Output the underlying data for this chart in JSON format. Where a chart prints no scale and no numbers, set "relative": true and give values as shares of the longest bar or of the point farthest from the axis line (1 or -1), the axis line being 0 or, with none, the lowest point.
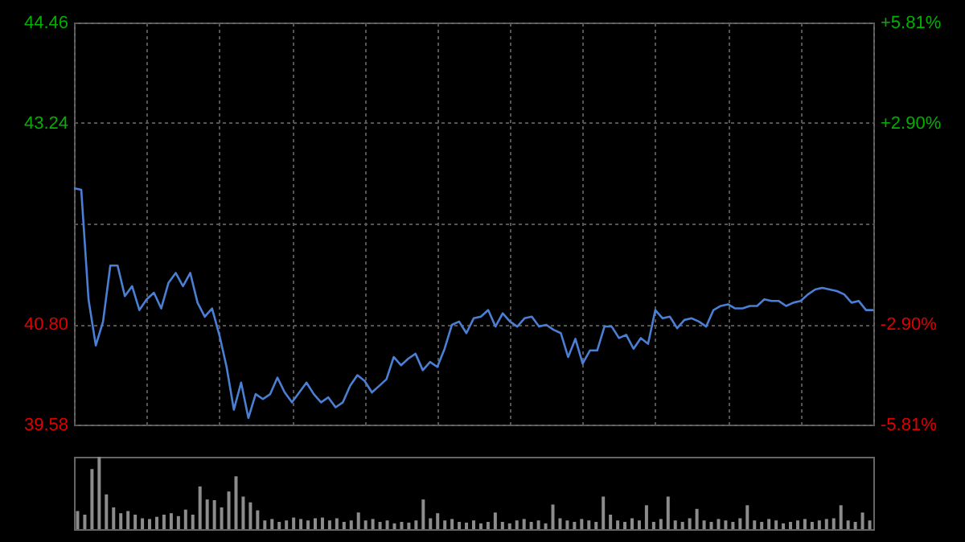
{
  "chart_data": [
    {
      "type": "line",
      "categories": [
        null,
        null,
        null,
        null,
        null,
        null,
        null,
        null,
        null,
        null,
        null,
        null,
        null,
        null,
        null,
        null,
        null,
        null,
        null,
        null,
        null,
        null,
        null,
        null,
        null,
        null,
        null,
        null,
        null,
        null,
        null,
        null,
        null,
        null,
        null,
        null,
        null,
        null,
        null,
        null,
        null,
        null,
        null,
        null,
        null,
        null,
        null,
        null,
        null,
        null,
        null,
        null,
        null,
        null,
        null,
        null,
        null,
        null,
        null,
        null,
        null,
        null,
        null,
        null,
        null,
        null,
        null,
        null,
        null,
        null,
        null,
        null,
        null,
        null,
        null,
        null,
        null,
        null,
        null,
        null,
        null,
        null,
        null,
        null,
        null,
        null,
        null,
        null,
        null,
        null,
        null,
        null,
        null,
        null,
        null,
        null,
        null,
        null,
        null,
        null,
        null,
        null,
        null,
        null,
        null,
        null,
        null,
        null,
        null,
        null,
        null
      ],
      "series": [
        {
          "color": "#4a7fd4",
          "values": [
            42.45,
            42.43,
            41.1,
            40.54,
            40.83,
            41.51,
            41.51,
            41.14,
            41.26,
            40.97,
            41.1,
            41.18,
            40.99,
            41.3,
            41.42,
            41.26,
            41.42,
            41.06,
            40.89,
            40.99,
            40.67,
            40.28,
            39.76,
            40.09,
            39.66,
            39.95,
            39.89,
            39.95,
            40.15,
            39.97,
            39.85,
            39.97,
            40.09,
            39.95,
            39.85,
            39.91,
            39.79,
            39.85,
            40.05,
            40.18,
            40.11,
            39.97,
            40.05,
            40.13,
            40.4,
            40.3,
            40.38,
            40.44,
            40.24,
            40.34,
            40.28,
            40.5,
            40.79,
            40.83,
            40.69,
            40.87,
            40.89,
            40.97,
            40.77,
            40.93,
            40.83,
            40.77,
            40.87,
            40.89,
            40.77,
            40.79,
            40.73,
            40.69,
            40.4,
            40.62,
            40.32,
            40.48,
            40.48,
            40.77,
            40.77,
            40.63,
            40.67,
            40.5,
            40.63,
            40.56,
            40.97,
            40.87,
            40.89,
            40.75,
            40.85,
            40.87,
            40.83,
            40.77,
            40.97,
            41.02,
            41.04,
            40.99,
            40.99,
            41.02,
            41.02,
            41.1,
            41.08,
            41.08,
            41.02,
            41.06,
            41.08,
            41.16,
            41.22,
            41.24,
            41.22,
            41.2,
            41.16,
            41.06,
            41.08,
            40.97,
            40.97
          ]
        }
      ],
      "ylim": [
        39.58,
        44.46
      ],
      "yticks": [
        39.58,
        {
          "value": 40.8,
          "label": "40.80"
        },
        {
          "value": 42.02,
          "label": null
        },
        43.24,
        44.46
      ],
      "y2lim": [
        -5.81,
        5.81
      ],
      "y2ticks": [
        {
          "value": -5.81,
          "label": "-5.81%"
        },
        {
          "value": -2.9,
          "label": "-2.90%"
        },
        {
          "value": 0,
          "label": null
        },
        {
          "value": 2.9,
          "label": "+2.90%"
        },
        {
          "value": 5.81,
          "label": "+5.81%"
        }
      ],
      "grid": true,
      "tick_labels": "y",
      "marker": "none",
      "line_style": "solid"
    },
    {
      "type": "bar",
      "relative": true,
      "color": "#8c8c8c",
      "categories": [
        null,
        null,
        null,
        null,
        null,
        null,
        null,
        null,
        null,
        null,
        null,
        null,
        null,
        null,
        null,
        null,
        null,
        null,
        null,
        null,
        null,
        null,
        null,
        null,
        null,
        null,
        null,
        null,
        null,
        null,
        null,
        null,
        null,
        null,
        null,
        null,
        null,
        null,
        null,
        null,
        null,
        null,
        null,
        null,
        null,
        null,
        null,
        null,
        null,
        null,
        null,
        null,
        null,
        null,
        null,
        null,
        null,
        null,
        null,
        null,
        null,
        null,
        null,
        null,
        null,
        null,
        null,
        null,
        null,
        null,
        null,
        null,
        null,
        null,
        null,
        null,
        null,
        null,
        null,
        null,
        null,
        null,
        null,
        null,
        null,
        null,
        null,
        null,
        null,
        null,
        null,
        null,
        null,
        null,
        null,
        null,
        null,
        null,
        null,
        null,
        null,
        null,
        null,
        null,
        null,
        null,
        null,
        null,
        null,
        null,
        null
      ],
      "values": [
        0.25,
        0.2,
        0.83,
        1.0,
        0.48,
        0.3,
        0.22,
        0.25,
        0.2,
        0.15,
        0.14,
        0.17,
        0.2,
        0.22,
        0.18,
        0.27,
        0.2,
        0.59,
        0.41,
        0.4,
        0.3,
        0.52,
        0.73,
        0.45,
        0.37,
        0.26,
        0.12,
        0.14,
        0.1,
        0.12,
        0.16,
        0.14,
        0.12,
        0.15,
        0.16,
        0.12,
        0.15,
        0.1,
        0.12,
        0.23,
        0.12,
        0.14,
        0.1,
        0.12,
        0.08,
        0.1,
        0.09,
        0.12,
        0.41,
        0.15,
        0.22,
        0.12,
        0.14,
        0.1,
        0.09,
        0.12,
        0.08,
        0.1,
        0.23,
        0.1,
        0.08,
        0.12,
        0.14,
        0.1,
        0.12,
        0.08,
        0.34,
        0.15,
        0.12,
        0.1,
        0.14,
        0.12,
        0.1,
        0.45,
        0.2,
        0.12,
        0.1,
        0.15,
        0.12,
        0.33,
        0.1,
        0.14,
        0.45,
        0.12,
        0.1,
        0.15,
        0.28,
        0.12,
        0.1,
        0.14,
        0.12,
        0.1,
        0.15,
        0.33,
        0.12,
        0.1,
        0.14,
        0.12,
        0.08,
        0.1,
        0.12,
        0.14,
        0.1,
        0.12,
        0.14,
        0.15,
        0.33,
        0.12,
        0.1,
        0.23,
        0.12
      ]
    }
  ]
}
